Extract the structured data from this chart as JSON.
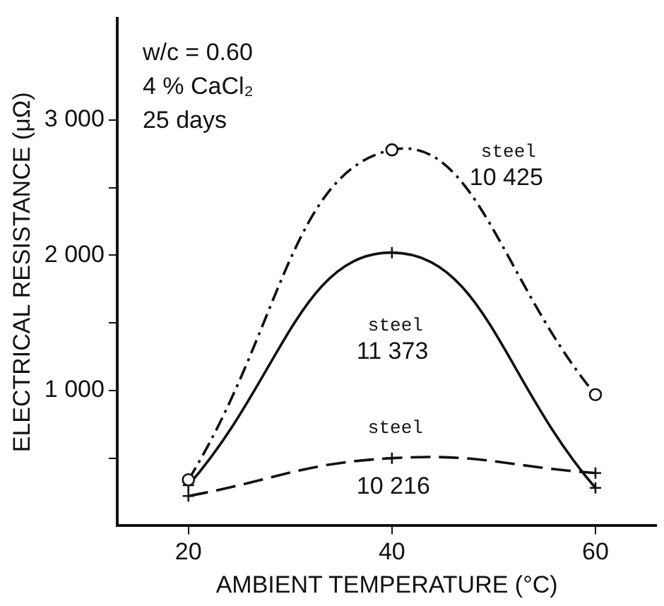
{
  "chart_data": {
    "type": "line",
    "xlabel": "AMBIENT TEMPERATURE (°C)",
    "ylabel": "ELECTRICAL RESISTANCE (μΩ)",
    "annotations": [
      "w/c = 0.60",
      "4 % CaCl₂",
      "25 days"
    ],
    "x": [
      20,
      40,
      60
    ],
    "xlim": [
      13,
      66
    ],
    "xticks": [
      20,
      40,
      60
    ],
    "ylim": [
      0,
      3750
    ],
    "yticks": [
      {
        "value": 500,
        "label": null
      },
      {
        "value": 1000,
        "label": "1 000"
      },
      {
        "value": 1500,
        "label": null
      },
      {
        "value": 2000,
        "label": "2 000"
      },
      {
        "value": 2500,
        "label": null
      },
      {
        "value": 3000,
        "label": "3 000"
      }
    ],
    "grid": false,
    "legend": false,
    "series": [
      {
        "name": "steel 10 425",
        "color": "#111111",
        "values": [
          340,
          2780,
          970
        ],
        "marker": "circle",
        "line_style": "dashdot"
      },
      {
        "name": "steel 11 373",
        "color": "#111111",
        "values": [
          300,
          2020,
          280
        ],
        "marker": "cross",
        "line_style": "solid"
      },
      {
        "name": "steel 10 216",
        "color": "#111111",
        "values": [
          220,
          500,
          390
        ],
        "marker": "cross",
        "line_style": "dashed"
      }
    ]
  }
}
